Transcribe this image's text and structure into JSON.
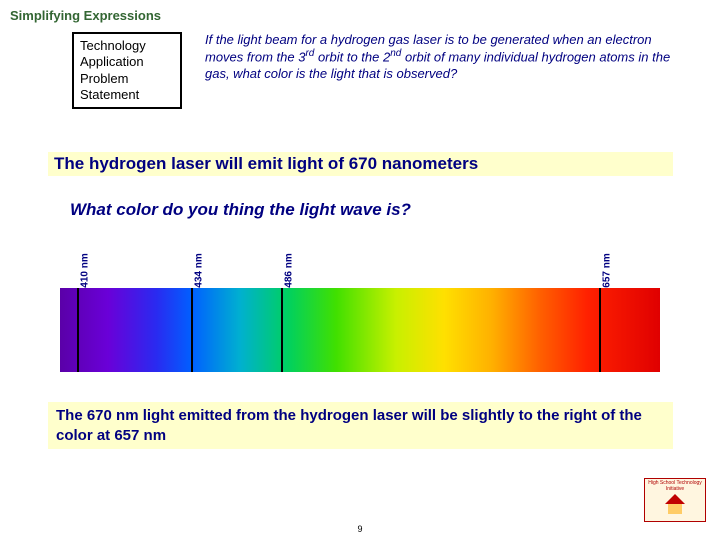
{
  "page": {
    "title": "Simplifying Expressions",
    "number": "9"
  },
  "box": {
    "line1": "Technology",
    "line2": "Application",
    "line3": "Problem",
    "line4": "Statement"
  },
  "problem": {
    "p1": "If the light beam for a hydrogen gas laser is to be generated when an electron moves from the 3",
    "sup1": "rd",
    "p2": " orbit to the 2",
    "sup2": "nd",
    "p3": " orbit of many individual hydrogen atoms in the gas, what color is the light that is observed?"
  },
  "emit": "The hydrogen laser will emit light of 670 nanometers",
  "question": "What color do you thing the light wave is?",
  "spectrum": {
    "markers": [
      {
        "label": "410 nm",
        "pos_pct": 3
      },
      {
        "label": "434 nm",
        "pos_pct": 22
      },
      {
        "label": "486 nm",
        "pos_pct": 37
      },
      {
        "label": "657 nm",
        "pos_pct": 90
      }
    ],
    "gradient_stops": [
      {
        "c": "#5a00a8",
        "p": 0
      },
      {
        "c": "#6a00d8",
        "p": 8
      },
      {
        "c": "#2a2af0",
        "p": 16
      },
      {
        "c": "#0060ff",
        "p": 22
      },
      {
        "c": "#00b0d0",
        "p": 30
      },
      {
        "c": "#00d060",
        "p": 38
      },
      {
        "c": "#40e000",
        "p": 46
      },
      {
        "c": "#c8f000",
        "p": 56
      },
      {
        "c": "#ffe000",
        "p": 64
      },
      {
        "c": "#ffb000",
        "p": 72
      },
      {
        "c": "#ff6000",
        "p": 80
      },
      {
        "c": "#ff2000",
        "p": 88
      },
      {
        "c": "#e00000",
        "p": 100
      }
    ]
  },
  "result": "The 670 nm light emitted from the hydrogen laser will be slightly to the right of the color at 657 nm",
  "logo": {
    "text": "High School Technology Initiative"
  }
}
